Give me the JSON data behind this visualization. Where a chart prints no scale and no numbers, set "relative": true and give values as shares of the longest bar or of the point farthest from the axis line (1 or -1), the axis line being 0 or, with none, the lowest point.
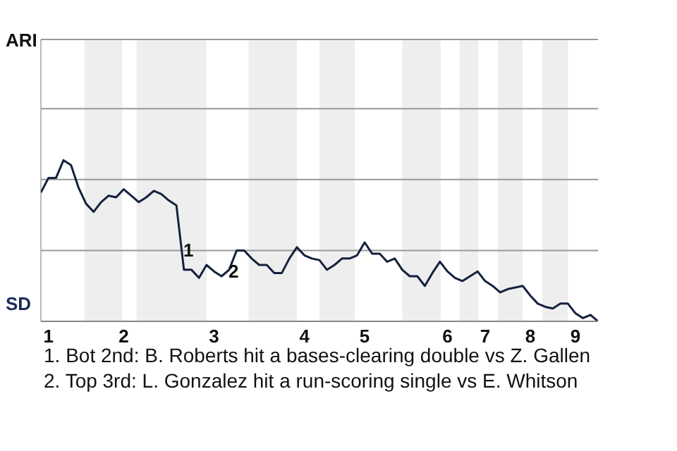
{
  "chart_data": {
    "type": "line",
    "relative": true,
    "categories": [
      null,
      "1",
      null,
      null,
      null,
      null,
      null,
      null,
      null,
      null,
      null,
      "2",
      null,
      null,
      null,
      null,
      null,
      null,
      null,
      null,
      null,
      null,
      null,
      "3",
      null,
      null,
      null,
      null,
      null,
      null,
      null,
      null,
      null,
      null,
      null,
      "4",
      null,
      null,
      null,
      null,
      null,
      null,
      null,
      "5",
      null,
      null,
      null,
      null,
      null,
      null,
      null,
      null,
      null,
      null,
      "6",
      null,
      null,
      null,
      null,
      "7",
      null,
      null,
      null,
      null,
      null,
      "8",
      null,
      null,
      null,
      null,
      null,
      "9",
      null,
      null,
      null
    ],
    "series": [
      {
        "color": "#14213d",
        "values": [
          0.8,
          0.89,
          0.89,
          1,
          0.97,
          0.83,
          0.73,
          0.68,
          0.74,
          0.78,
          0.77,
          0.82,
          0.78,
          0.74,
          0.77,
          0.81,
          0.79,
          0.75,
          0.72,
          0.32,
          0.32,
          0.27,
          0.35,
          0.31,
          0.28,
          0.32,
          0.44,
          0.44,
          0.39,
          0.35,
          0.35,
          0.3,
          0.3,
          0.39,
          0.46,
          0.41,
          0.39,
          0.38,
          0.32,
          0.35,
          0.39,
          0.39,
          0.41,
          0.49,
          0.42,
          0.42,
          0.37,
          0.39,
          0.32,
          0.28,
          0.28,
          0.22,
          0.3,
          0.37,
          0.31,
          0.27,
          0.25,
          0.28,
          0.31,
          0.25,
          0.22,
          0.18,
          0.2,
          0.21,
          0.22,
          0.16,
          0.11,
          0.09,
          0.08,
          0.11,
          0.11,
          0.05,
          0.02,
          0.04,
          0
        ]
      }
    ],
    "ref_lines": [
      {
        "axis": "y",
        "value": 0.44,
        "color": "#999999"
      },
      {
        "axis": "y",
        "value": 0.88,
        "color": "#999999"
      },
      {
        "axis": "y",
        "value": 1.32,
        "color": "#999999"
      },
      {
        "axis": "y",
        "value": 1.75,
        "color": "#999999"
      }
    ],
    "annotations": [
      "ARI",
      "SD",
      "1",
      "2",
      "1. Bot 2nd: B. Roberts hit a bases-clearing double vs Z. Gallen",
      "2. Top 3rd: L. Gonzalez hit a run-scoring single vs E. Whitson"
    ]
  }
}
